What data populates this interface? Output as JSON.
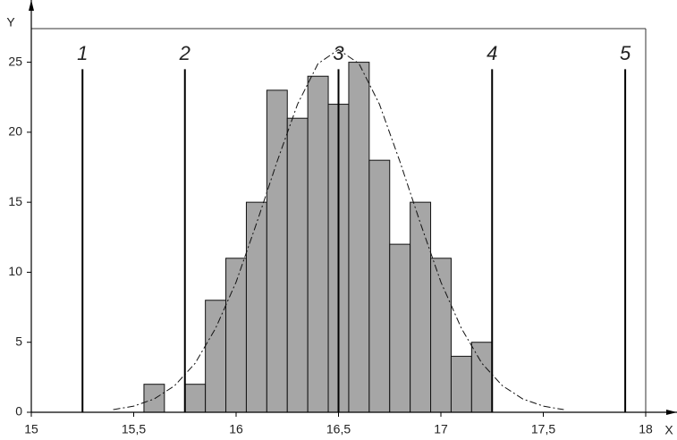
{
  "chart_data": {
    "type": "histogram",
    "xlabel": "X",
    "ylabel": "Y",
    "bins": [
      15.55,
      15.65,
      15.75,
      15.85,
      15.95,
      16.05,
      16.15,
      16.25,
      16.35,
      16.45,
      16.55,
      16.65,
      16.75,
      16.85,
      16.95,
      17.05,
      17.15,
      17.25
    ],
    "values": [
      2,
      0,
      2,
      8,
      11,
      15,
      23,
      21,
      24,
      22,
      25,
      18,
      12,
      15,
      11,
      4,
      5
    ],
    "color": "#a6a6a6",
    "curve": {
      "x": [
        15.4,
        15.5,
        15.6,
        15.7,
        15.8,
        15.9,
        16.0,
        16.1,
        16.2,
        16.3,
        16.4,
        16.5,
        16.6,
        16.7,
        16.8,
        16.9,
        17.0,
        17.1,
        17.2,
        17.3,
        17.4,
        17.5,
        17.6
      ],
      "y": [
        0.19,
        0.44,
        0.95,
        1.9,
        3.5,
        6.0,
        9.3,
        13.5,
        17.9,
        22.0,
        24.9,
        25.9,
        24.9,
        22.0,
        17.9,
        13.5,
        9.3,
        6.0,
        3.5,
        1.9,
        0.95,
        0.44,
        0.19
      ]
    },
    "markers": [
      {
        "x": 15.25,
        "label": "1",
        "top": 24.5
      },
      {
        "x": 15.75,
        "label": "2",
        "top": 24.5
      },
      {
        "x": 16.5,
        "label": "3",
        "top": 24.5
      },
      {
        "x": 17.25,
        "label": "4",
        "top": 24.5
      },
      {
        "x": 17.9,
        "label": "5",
        "top": 24.5
      }
    ],
    "xlim": [
      15,
      18
    ],
    "ylim": [
      0,
      27.4
    ],
    "xticks": [
      15,
      {
        "value": 15.5,
        "label": "15,5"
      },
      16,
      {
        "value": 16.5,
        "label": "16,5"
      },
      17,
      {
        "value": 17.5,
        "label": "17,5"
      },
      18
    ],
    "yticks": [
      0,
      5,
      10,
      15,
      20,
      25
    ]
  }
}
